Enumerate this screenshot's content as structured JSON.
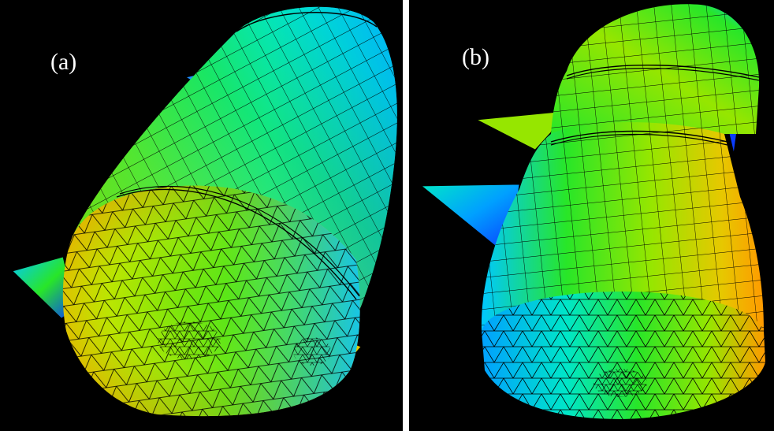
{
  "panels": [
    {
      "id": "a",
      "label": "(a)"
    },
    {
      "id": "b",
      "label": "(b)"
    }
  ],
  "colors": {
    "background": "#000000",
    "separator": "#ffffff",
    "mesh_line": "#000000",
    "label": "#ffffff",
    "colormap": [
      "#0a3cff",
      "#00c8ff",
      "#00e6c8",
      "#28e628",
      "#96e600",
      "#e6c800",
      "#ff9a00"
    ]
  }
}
